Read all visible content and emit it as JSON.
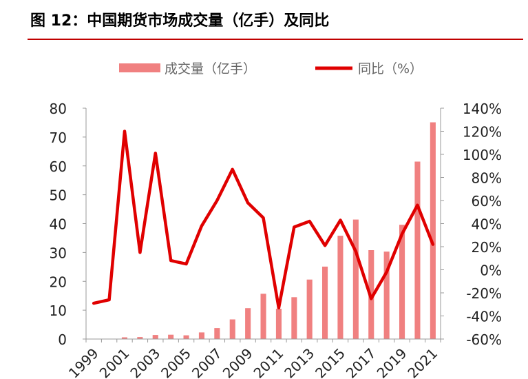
{
  "figure": {
    "title": "图 12：中国期货市场成交量（亿手）及同比"
  },
  "colors": {
    "bar": "#f08080",
    "line": "#e00000",
    "rule": "#c00000",
    "axis": "#999999",
    "text": "#222222"
  },
  "chart_data": {
    "type": "bar+line",
    "categories": [
      "1999",
      "2000",
      "2001",
      "2002",
      "2003",
      "2004",
      "2005",
      "2006",
      "2007",
      "2008",
      "2009",
      "2010",
      "2011",
      "2012",
      "2013",
      "2014",
      "2015",
      "2016",
      "2017",
      "2018",
      "2019",
      "2020",
      "2021"
    ],
    "x_tick_labels": [
      "1999",
      "2001",
      "2003",
      "2005",
      "2007",
      "2009",
      "2011",
      "2013",
      "2015",
      "2017",
      "2019",
      "2021"
    ],
    "series": [
      {
        "name": "成交量（亿手）",
        "type": "bar",
        "axis": "left",
        "values": [
          0.1,
          0.1,
          0.6,
          0.7,
          1.4,
          1.5,
          1.3,
          2.3,
          3.8,
          6.8,
          10.7,
          15.7,
          10.5,
          14.5,
          20.6,
          25.1,
          35.8,
          41.4,
          30.8,
          30.3,
          39.6,
          61.5,
          75.1
        ]
      },
      {
        "name": "同比（%）",
        "type": "line",
        "axis": "right",
        "values": [
          -29,
          -26,
          120,
          15,
          101,
          8,
          5,
          38,
          60,
          87,
          58,
          45,
          -33,
          37,
          42,
          21,
          43,
          16,
          -25,
          -2,
          31,
          56,
          22
        ]
      }
    ],
    "y_left": {
      "min": 0,
      "max": 80,
      "ticks": [
        "0",
        "10",
        "20",
        "30",
        "40",
        "50",
        "60",
        "70",
        "80"
      ]
    },
    "y_right": {
      "min": -60,
      "max": 140,
      "ticks": [
        "-60%",
        "-40%",
        "-20%",
        "0%",
        "20%",
        "40%",
        "60%",
        "80%",
        "100%",
        "120%",
        "140%"
      ]
    },
    "legend": {
      "position": "top-center",
      "bar_label": "成交量（亿手）",
      "line_label": "同比（%）"
    },
    "grid": false
  }
}
